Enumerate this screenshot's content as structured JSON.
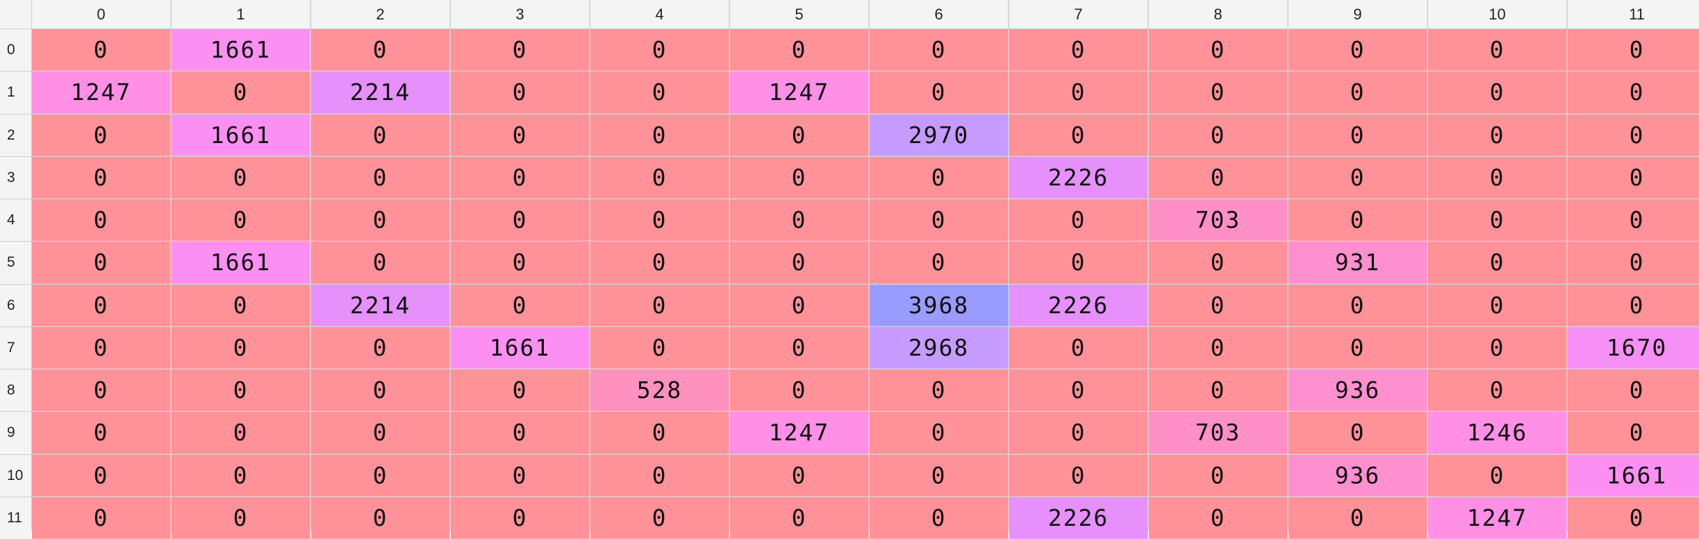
{
  "columns": [
    "0",
    "1",
    "2",
    "3",
    "4",
    "5",
    "6",
    "7",
    "8",
    "9",
    "10",
    "11"
  ],
  "rows": [
    "0",
    "1",
    "2",
    "3",
    "4",
    "5",
    "6",
    "7",
    "8",
    "9",
    "10",
    "11"
  ],
  "values": [
    [
      0,
      1661,
      0,
      0,
      0,
      0,
      0,
      0,
      0,
      0,
      0,
      0
    ],
    [
      1247,
      0,
      2214,
      0,
      0,
      1247,
      0,
      0,
      0,
      0,
      0,
      0
    ],
    [
      0,
      1661,
      0,
      0,
      0,
      0,
      2970,
      0,
      0,
      0,
      0,
      0
    ],
    [
      0,
      0,
      0,
      0,
      0,
      0,
      0,
      2226,
      0,
      0,
      0,
      0
    ],
    [
      0,
      0,
      0,
      0,
      0,
      0,
      0,
      0,
      703,
      0,
      0,
      0
    ],
    [
      0,
      1661,
      0,
      0,
      0,
      0,
      0,
      0,
      0,
      931,
      0,
      0
    ],
    [
      0,
      0,
      2214,
      0,
      0,
      0,
      3968,
      2226,
      0,
      0,
      0,
      0
    ],
    [
      0,
      0,
      0,
      1661,
      0,
      0,
      2968,
      0,
      0,
      0,
      0,
      1670
    ],
    [
      0,
      0,
      0,
      0,
      528,
      0,
      0,
      0,
      0,
      936,
      0,
      0
    ],
    [
      0,
      0,
      0,
      0,
      0,
      1247,
      0,
      0,
      703,
      0,
      1246,
      0
    ],
    [
      0,
      0,
      0,
      0,
      0,
      0,
      0,
      0,
      0,
      936,
      0,
      1661
    ],
    [
      0,
      0,
      0,
      0,
      0,
      0,
      0,
      2226,
      0,
      0,
      1247,
      0
    ]
  ],
  "colors": {
    "zero": "#ff9199",
    "v500": "#ff91be",
    "v700": "#ff90c7",
    "v900": "#ff90d0",
    "v1200": "#ff90e6",
    "v1600": "#fb90f2",
    "v1700": "#f690f6",
    "v2200": "#e690fb",
    "v2900": "#c69bff",
    "v3900": "#9a9bff"
  }
}
